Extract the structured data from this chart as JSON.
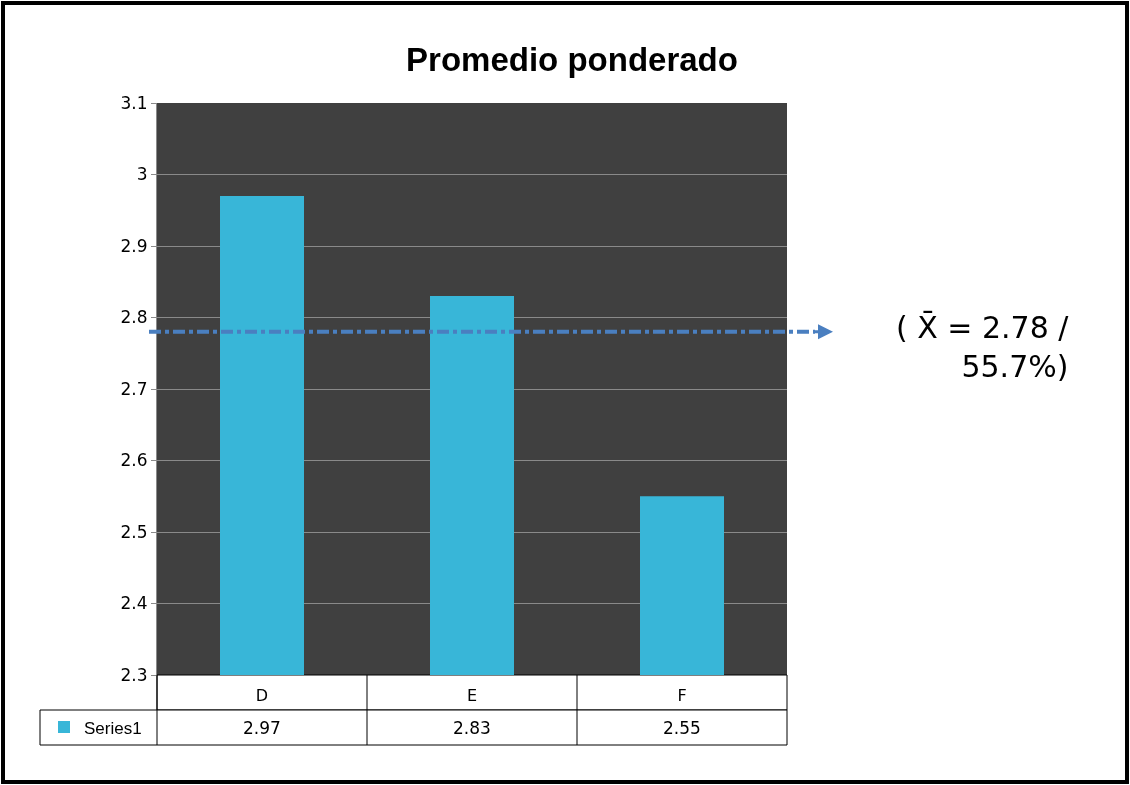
{
  "chart_data": {
    "type": "bar",
    "title": "Promedio ponderado",
    "categories": [
      "D",
      "E",
      "F"
    ],
    "series": [
      {
        "name": "Series1",
        "color": "#38b6d8",
        "values": [
          2.97,
          2.83,
          2.55
        ]
      }
    ],
    "ylim": [
      2.3,
      3.1
    ],
    "yticks": [
      2.3,
      2.4,
      2.5,
      2.6,
      2.7,
      2.8,
      2.9,
      3,
      3.1
    ],
    "grid": "y",
    "legend": "bottom",
    "data_labels": true,
    "ref_lines": [
      {
        "axis": "y",
        "value": 2.78,
        "label": "( X̄ = 2.78 /\n55.7%)",
        "color": "#4a7fc0",
        "line_style": "dashdot"
      }
    ]
  }
}
